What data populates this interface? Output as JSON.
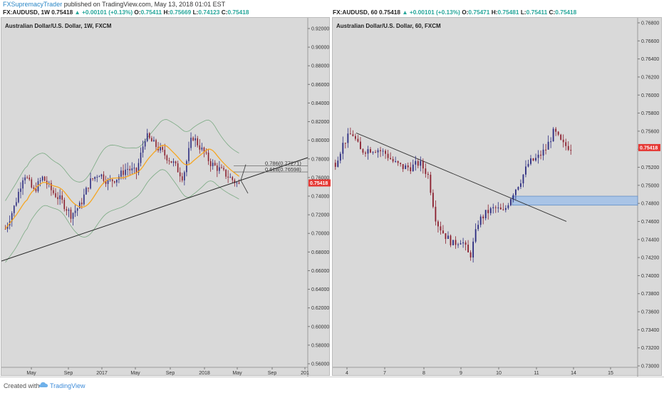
{
  "header": {
    "author": "FXSupremacyTrader",
    "published": " published on TradingView.com, May 13, 2018 01:01 EST"
  },
  "left": {
    "quote": {
      "symbol": "FX:AUDUSD, 1W",
      "price": "0.75418",
      "change": "▲ +0.00101 (+0.13%)",
      "o_label": "O:",
      "o": "0.75411",
      "h_label": "H:",
      "h": "0.75669",
      "l_label": "L:",
      "l": "0.74123",
      "c_label": "C:",
      "c": "0.75418"
    },
    "title": "Australian Dollar/U.S. Dollar, 1W, FXCM",
    "price_labels": [
      "0.92000",
      "0.90000",
      "0.88000",
      "0.86000",
      "0.84000",
      "0.82000",
      "0.80000",
      "0.78000",
      "0.76000",
      "0.74000",
      "0.72000",
      "0.70000",
      "0.68000",
      "0.66000",
      "0.64000",
      "0.62000",
      "0.60000",
      "0.58000",
      "0.56000"
    ],
    "last_price": "0.75418",
    "time_labels": [
      "May",
      "Sep",
      "2017",
      "May",
      "Sep",
      "2018",
      "May",
      "Sep",
      "201"
    ],
    "fib": [
      {
        "label": "0.786(0.77271)"
      },
      {
        "label": "0.618(0.76598)"
      }
    ]
  },
  "right": {
    "quote": {
      "symbol": "FX:AUDUSD, 60",
      "price": "0.75418",
      "change": "▲ +0.00101 (+0.13%)",
      "o_label": "O:",
      "o": "0.75471",
      "h_label": "H:",
      "h": "0.75481",
      "l_label": "L:",
      "l": "0.75411",
      "c_label": "C:",
      "c": "0.75418"
    },
    "title": "Australian Dollar/U.S. Dollar, 60, FXCM",
    "price_labels": [
      "0.76800",
      "0.76600",
      "0.76400",
      "0.76200",
      "0.76000",
      "0.75800",
      "0.75600",
      "0.75400",
      "0.75200",
      "0.75000",
      "0.74800",
      "0.74600",
      "0.74400",
      "0.74200",
      "0.74000",
      "0.73800",
      "0.73600",
      "0.73400",
      "0.73200",
      "0.73000"
    ],
    "last_price": "0.75418",
    "time_labels": [
      "4",
      "7",
      "8",
      "9",
      "10",
      "11",
      "14",
      "15"
    ]
  },
  "footer": {
    "created": "Created with",
    "brand": "TradingView"
  },
  "colors": {
    "bull": "#2b2b80",
    "bear": "#8b1f2e",
    "ma": "#f5a623",
    "band": "#7aaa82",
    "last": "#e53935",
    "zone": "#a9c4e6"
  }
}
